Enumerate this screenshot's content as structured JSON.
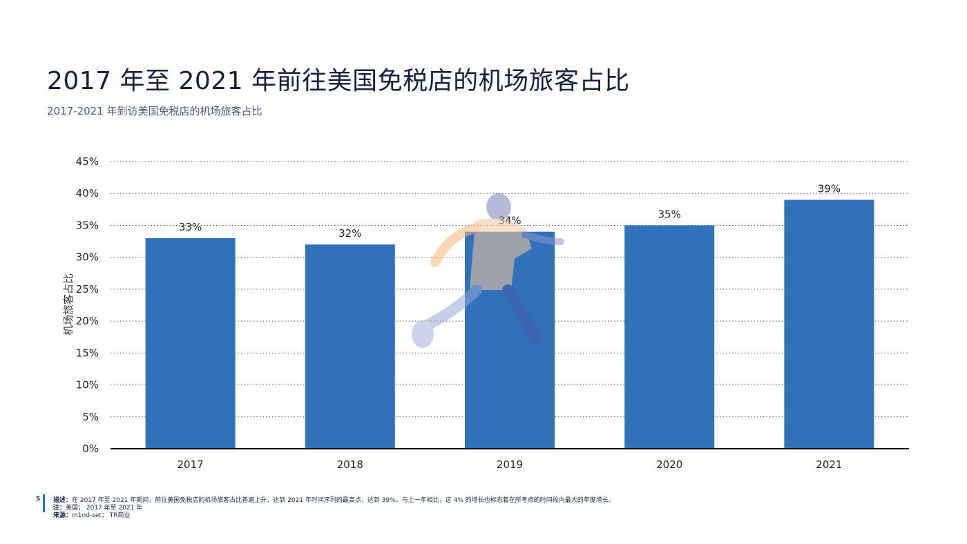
{
  "header": {
    "title": "2017 年至 2021 年前往美国免税店的机场旅客占比",
    "subtitle": "2017-2021 年到访美国免税店的机场旅客占比"
  },
  "chart_data": {
    "type": "bar",
    "categories": [
      "2017",
      "2018",
      "2019",
      "2020",
      "2021"
    ],
    "values": [
      33,
      32,
      34,
      35,
      39
    ],
    "data_labels": [
      "33%",
      "32%",
      "34%",
      "35%",
      "39%"
    ],
    "ylabel": "机场旅客占比",
    "xlabel": "",
    "ylim": [
      0,
      45
    ],
    "yticks": [
      "0%",
      "5%",
      "10%",
      "15%",
      "20%",
      "25%",
      "30%",
      "35%",
      "40%",
      "45%"
    ],
    "grid": "dotted horizontal",
    "bar_color": "#3171ba",
    "legend": "none"
  },
  "footer": {
    "page_number": "5",
    "description_label": "描述：",
    "description": "在 2017 年至 2021 年期间，前往美国免税店的机场旅客占比普遍上升，达到 2021 年时间序列的最高点，达到 39%。与上一年相比，这 4% 的增长也标志着在所考虑的时间段内最大的年度增长。",
    "note_label": "注：",
    "note": "美国；  2017 年至 2021 年",
    "source_label": "来源：",
    "source": "m1nd-set； TR商业"
  }
}
